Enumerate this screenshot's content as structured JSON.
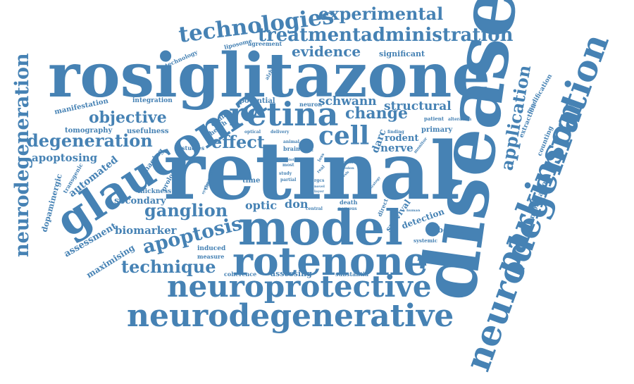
{
  "color": "#4682b4",
  "words": [
    {
      "text": "retinal",
      "weight": 100
    },
    {
      "text": "disease",
      "weight": 92
    },
    {
      "text": "rosiglitazone",
      "weight": 80
    },
    {
      "text": "model",
      "weight": 62
    },
    {
      "text": "glaucoma",
      "weight": 56
    },
    {
      "text": "rotenone",
      "weight": 52
    },
    {
      "text": "neurodegenration",
      "weight": 50
    },
    {
      "text": "parkinson",
      "weight": 48
    },
    {
      "text": "retina",
      "weight": 46
    },
    {
      "text": "neurodegenerative",
      "weight": 44
    },
    {
      "text": "neuroprotective",
      "weight": 44
    },
    {
      "text": "cell",
      "weight": 36
    },
    {
      "text": "technologies",
      "weight": 30
    },
    {
      "text": "treatment",
      "weight": 26
    },
    {
      "text": "administration",
      "weight": 26
    },
    {
      "text": "neurodegeneration",
      "weight": 26
    },
    {
      "text": "apoptosis",
      "weight": 26
    },
    {
      "text": "application",
      "weight": 24
    },
    {
      "text": "experimental",
      "weight": 24
    },
    {
      "text": "degeneration",
      "weight": 22
    },
    {
      "text": "ganglion",
      "weight": 22
    },
    {
      "text": "technique",
      "weight": 22
    },
    {
      "text": "effect",
      "weight": 22
    },
    {
      "text": "change",
      "weight": 20
    },
    {
      "text": "evidence",
      "weight": 20
    },
    {
      "text": "objective",
      "weight": 20
    },
    {
      "text": "structural",
      "weight": 16
    },
    {
      "text": "schwann",
      "weight": 16
    },
    {
      "text": "nerve",
      "weight": 14
    },
    {
      "text": "optic",
      "weight": 14
    },
    {
      "text": "don",
      "weight": 14
    },
    {
      "text": "biomarker",
      "weight": 14
    },
    {
      "text": "apoptosing",
      "weight": 14
    },
    {
      "text": "automated",
      "weight": 13
    },
    {
      "text": "secondary",
      "weight": 13
    },
    {
      "text": "assessment",
      "weight": 12
    },
    {
      "text": "maximising",
      "weight": 12
    },
    {
      "text": "darc",
      "weight": 12
    },
    {
      "text": "rodent",
      "weight": 12
    },
    {
      "text": "detection",
      "weight": 11
    },
    {
      "text": "survival",
      "weight": 11
    },
    {
      "text": "dopaminergic",
      "weight": 11
    },
    {
      "text": "formulation",
      "weight": 10
    },
    {
      "text": "information",
      "weight": 10
    },
    {
      "text": "significant",
      "weight": 10
    },
    {
      "text": "assessing",
      "weight": 10
    },
    {
      "text": "labeling",
      "weight": 10
    },
    {
      "text": "tomography",
      "weight": 10
    },
    {
      "text": "manifestation",
      "weight": 10
    },
    {
      "text": "usefulness",
      "weight": 10
    },
    {
      "text": "integration",
      "weight": 9
    },
    {
      "text": "potential",
      "weight": 9
    },
    {
      "text": "primary",
      "weight": 9
    },
    {
      "text": "counting",
      "weight": 9
    },
    {
      "text": "extraction",
      "weight": 9
    },
    {
      "text": "modification",
      "weight": 9
    },
    {
      "text": "imaging",
      "weight": 9
    },
    {
      "text": "prolog",
      "weight": 9
    },
    {
      "text": "thickness",
      "weight": 9
    },
    {
      "text": "induced",
      "weight": 9
    },
    {
      "text": "measure",
      "weight": 8
    },
    {
      "text": "coherence",
      "weight": 8
    },
    {
      "text": "substantia",
      "weight": 8
    },
    {
      "text": "time",
      "weight": 9
    },
    {
      "text": "studies",
      "weight": 8
    },
    {
      "text": "sheath",
      "weight": 9
    },
    {
      "text": "ocular",
      "weight": 9
    },
    {
      "text": "neuron",
      "weight": 8
    },
    {
      "text": "transgenic",
      "weight": 8
    },
    {
      "text": "therapies",
      "weight": 8
    },
    {
      "text": "liposome",
      "weight": 8
    },
    {
      "text": "technology",
      "weight": 8
    },
    {
      "text": "agreement",
      "weight": 8
    },
    {
      "text": "alzheimer",
      "weight": 7
    },
    {
      "text": "axonal",
      "weight": 7
    },
    {
      "text": "brain",
      "weight": 8
    },
    {
      "text": "animal",
      "weight": 6
    },
    {
      "text": "optical",
      "weight": 6
    },
    {
      "text": "delivery",
      "weight": 6
    },
    {
      "text": "death",
      "weight": 8
    },
    {
      "text": "nervous",
      "weight": 7
    },
    {
      "text": "central",
      "weight": 6
    },
    {
      "text": "systemic",
      "weight": 7
    },
    {
      "text": "direct",
      "weight": 8
    },
    {
      "text": "patient",
      "weight": 7
    },
    {
      "text": "alteration",
      "weight": 6
    },
    {
      "text": "finding",
      "weight": 6
    },
    {
      "text": "monitor",
      "weight": 6
    },
    {
      "text": "human",
      "weight": 5
    },
    {
      "text": "strategy",
      "weight": 5
    },
    {
      "text": "system",
      "weight": 5
    },
    {
      "text": "study",
      "weight": 6
    },
    {
      "text": "partial",
      "weight": 6
    },
    {
      "text": "most",
      "weight": 6
    },
    {
      "text": "point",
      "weight": 5
    },
    {
      "text": "real",
      "weight": 6
    },
    {
      "text": "loss",
      "weight": 6
    },
    {
      "text": "rgcs",
      "weight": 6
    },
    {
      "text": "novel",
      "weight": 5
    },
    {
      "text": "layer",
      "weight": 5
    },
    {
      "text": "thesis",
      "weight": 5
    },
    {
      "text": "clinic",
      "weight": 5
    },
    {
      "text": "laser",
      "weight": 5
    },
    {
      "text": "lesion",
      "weight": 5
    }
  ]
}
